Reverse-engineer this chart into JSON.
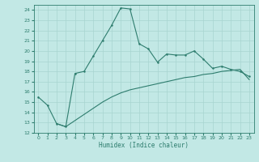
{
  "title": "",
  "xlabel": "Humidex (Indice chaleur)",
  "ylabel": "",
  "bg_color": "#c2e8e5",
  "line_color": "#2e7d6e",
  "grid_color": "#a8d4d0",
  "xlim": [
    -0.5,
    23.5
  ],
  "ylim": [
    12,
    24.5
  ],
  "yticks": [
    12,
    13,
    14,
    15,
    16,
    17,
    18,
    19,
    20,
    21,
    22,
    23,
    24
  ],
  "xticks": [
    0,
    1,
    2,
    3,
    4,
    5,
    6,
    7,
    8,
    9,
    10,
    11,
    12,
    13,
    14,
    15,
    16,
    17,
    18,
    19,
    20,
    21,
    22,
    23
  ],
  "line1_x": [
    0,
    1,
    2,
    3,
    4,
    5,
    6,
    7,
    8,
    9,
    10,
    11,
    12,
    13,
    14,
    15,
    16,
    17,
    18,
    19,
    20,
    21,
    22,
    23
  ],
  "line1_y": [
    15.5,
    14.7,
    12.9,
    12.6,
    17.8,
    18.0,
    19.5,
    21.0,
    22.5,
    24.2,
    24.1,
    20.7,
    20.2,
    18.9,
    19.7,
    19.6,
    19.6,
    20.0,
    19.2,
    18.3,
    18.5,
    18.2,
    18.0,
    17.5
  ],
  "line2_x": [
    2,
    3,
    4,
    5,
    6,
    7,
    8,
    9,
    10,
    11,
    12,
    13,
    14,
    15,
    16,
    17,
    18,
    19,
    20,
    21,
    22,
    23
  ],
  "line2_y": [
    12.9,
    12.6,
    13.2,
    13.8,
    14.4,
    15.0,
    15.5,
    15.9,
    16.2,
    16.4,
    16.6,
    16.8,
    17.0,
    17.2,
    17.4,
    17.5,
    17.7,
    17.8,
    18.0,
    18.1,
    18.2,
    17.2
  ]
}
